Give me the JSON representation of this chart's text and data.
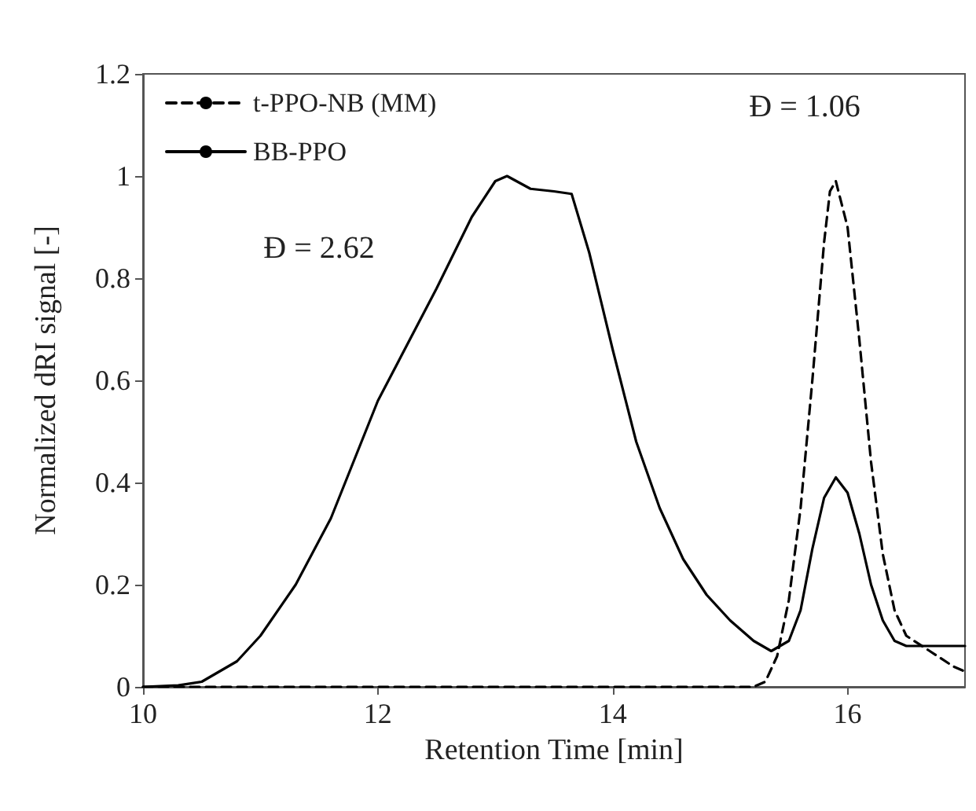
{
  "chart_data": {
    "type": "line",
    "xlabel": "Retention Time [min]",
    "ylabel": "Normalized dRI signal [-]",
    "xlim": [
      10,
      17
    ],
    "xticks": [
      10,
      12,
      14,
      16
    ],
    "ylim": [
      0,
      1.2
    ],
    "yticks": [
      0,
      0.2,
      0.4,
      0.6,
      0.8,
      1,
      1.2
    ],
    "grid": false,
    "legend": "top left",
    "marker": "none",
    "series": [
      {
        "name": "t-PPO-NB (MM)",
        "color": "#000000",
        "line_style": "dashed",
        "x": [
          10,
          11,
          12,
          13,
          14,
          15,
          15.2,
          15.3,
          15.4,
          15.5,
          15.6,
          15.7,
          15.8,
          15.85,
          15.9,
          16,
          16.1,
          16.2,
          16.3,
          16.4,
          16.5,
          16.7,
          16.9,
          17
        ],
        "values": [
          0,
          0,
          0,
          0,
          0,
          0,
          0,
          0.01,
          0.06,
          0.17,
          0.35,
          0.6,
          0.87,
          0.97,
          0.99,
          0.9,
          0.68,
          0.44,
          0.26,
          0.15,
          0.1,
          0.07,
          0.04,
          0.03
        ]
      },
      {
        "name": "BB-PPO",
        "color": "#000000",
        "line_style": "solid",
        "x": [
          10,
          10.3,
          10.5,
          10.8,
          11,
          11.3,
          11.6,
          12,
          12.5,
          12.8,
          13,
          13.1,
          13.3,
          13.5,
          13.65,
          13.8,
          14,
          14.2,
          14.4,
          14.6,
          14.8,
          15,
          15.2,
          15.35,
          15.5,
          15.6,
          15.7,
          15.8,
          15.9,
          16,
          16.1,
          16.2,
          16.3,
          16.4,
          16.5,
          17
        ],
        "values": [
          0,
          0.003,
          0.01,
          0.05,
          0.1,
          0.2,
          0.33,
          0.56,
          0.78,
          0.92,
          0.99,
          1,
          0.975,
          0.97,
          0.965,
          0.85,
          0.66,
          0.48,
          0.35,
          0.25,
          0.18,
          0.13,
          0.09,
          0.07,
          0.09,
          0.15,
          0.27,
          0.37,
          0.41,
          0.38,
          0.3,
          0.2,
          0.13,
          0.09,
          0.08,
          0.08
        ]
      }
    ],
    "annotations": [
      "Đ = 2.62",
      "Đ = 1.06"
    ]
  }
}
